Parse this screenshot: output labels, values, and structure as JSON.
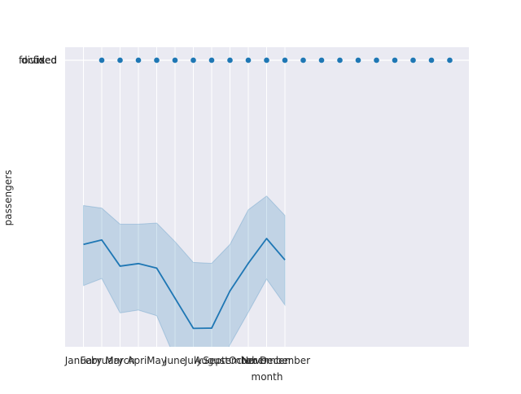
{
  "chart_data": {
    "type": "line",
    "xlabel": "month",
    "ylabel": "passengers",
    "grid": true,
    "categories": [
      "January",
      "February",
      "March",
      "April",
      "May",
      "June",
      "July",
      "August",
      "September",
      "October",
      "November",
      "December"
    ],
    "y_tick_labels": [
      "divided",
      "fixed",
      "focused"
    ],
    "line_series": {
      "x": [
        "January",
        "February",
        "March",
        "April",
        "May",
        "June",
        "July",
        "August",
        "September",
        "October",
        "November",
        "December"
      ],
      "mean": [
        0.346,
        0.362,
        0.269,
        0.278,
        0.262,
        0.155,
        0.048,
        0.049,
        0.181,
        0.279,
        0.367,
        0.291
      ],
      "ci_upper": [
        0.484,
        0.475,
        0.418,
        0.418,
        0.422,
        0.356,
        0.282,
        0.279,
        0.346,
        0.469,
        0.518,
        0.449
      ],
      "ci_lower": [
        0.2,
        0.225,
        0.103,
        0.113,
        0.093,
        -0.059,
        -0.184,
        -0.181,
        -0.01,
        0.105,
        0.223,
        0.131
      ],
      "color": "#1f77b4"
    },
    "scatter_series": {
      "x": [
        "February",
        "March",
        "April",
        "May",
        "June",
        "July",
        "August",
        "September",
        "October",
        "November",
        "December"
      ],
      "extra_point_count": 9,
      "y": 1,
      "color": "#1f77b4"
    },
    "colors": {
      "axes_background": "#EAEAF2",
      "grid": "#ffffff"
    }
  }
}
